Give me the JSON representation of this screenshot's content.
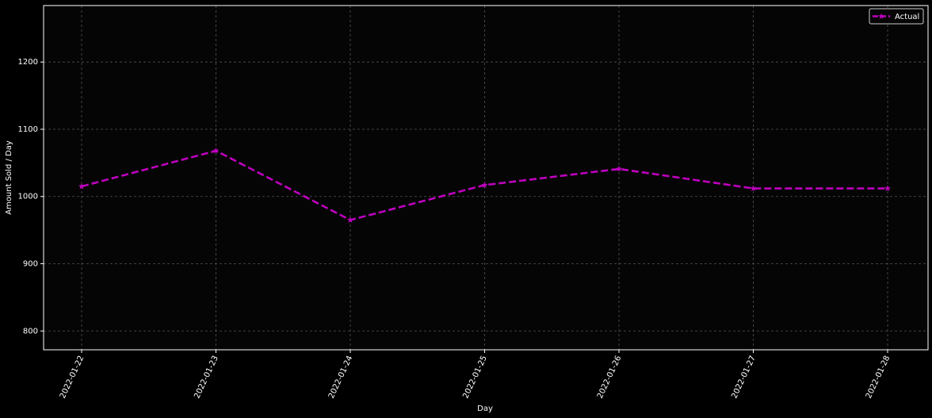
{
  "chart_data": {
    "type": "line",
    "title": "",
    "xlabel": "Day",
    "ylabel": "Amount Sold / Day",
    "categories": [
      "2022-01-22",
      "2022-01-23",
      "2022-01-24",
      "2022-01-25",
      "2022-01-26",
      "2022-01-27",
      "2022-01-28"
    ],
    "series": [
      {
        "name": "Actual",
        "values": [
          1015,
          1068,
          965,
          1017,
          1041,
          1012,
          1012
        ],
        "color": "#bf00bf",
        "line_style": "dashed",
        "marker": "star"
      }
    ],
    "yticks": [
      800,
      900,
      1000,
      1100,
      1200
    ],
    "ylim": [
      772,
      1284
    ],
    "grid": true,
    "legend_position": "top-right",
    "background_color": "#050505",
    "foreground_color": "#ffffff",
    "xtick_rotation_deg": 65
  }
}
